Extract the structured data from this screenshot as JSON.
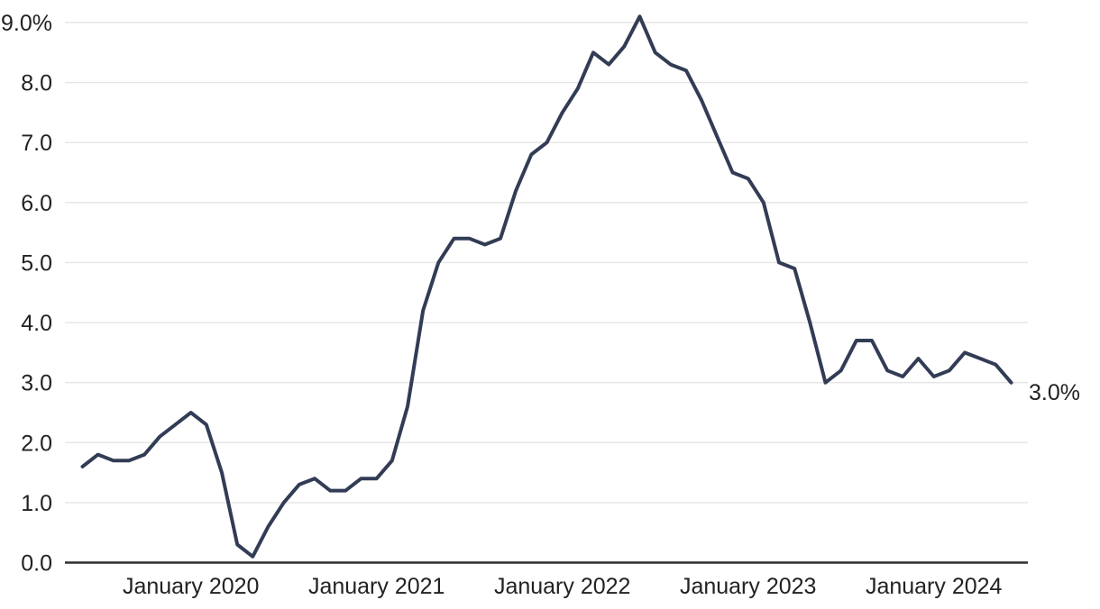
{
  "chart_data": {
    "type": "line",
    "title": "",
    "xlabel": "",
    "ylabel": "",
    "x": [
      "2019-06",
      "2019-07",
      "2019-08",
      "2019-09",
      "2019-10",
      "2019-11",
      "2019-12",
      "2020-01",
      "2020-02",
      "2020-03",
      "2020-04",
      "2020-05",
      "2020-06",
      "2020-07",
      "2020-08",
      "2020-09",
      "2020-10",
      "2020-11",
      "2020-12",
      "2021-01",
      "2021-02",
      "2021-03",
      "2021-04",
      "2021-05",
      "2021-06",
      "2021-07",
      "2021-08",
      "2021-09",
      "2021-10",
      "2021-11",
      "2021-12",
      "2022-01",
      "2022-02",
      "2022-03",
      "2022-04",
      "2022-05",
      "2022-06",
      "2022-07",
      "2022-08",
      "2022-09",
      "2022-10",
      "2022-11",
      "2022-12",
      "2023-01",
      "2023-02",
      "2023-03",
      "2023-04",
      "2023-05",
      "2023-06",
      "2023-07",
      "2023-08",
      "2023-09",
      "2023-10",
      "2023-11",
      "2023-12",
      "2024-01",
      "2024-02",
      "2024-03",
      "2024-04",
      "2024-05",
      "2024-06"
    ],
    "values": [
      1.6,
      1.8,
      1.7,
      1.7,
      1.8,
      2.1,
      2.3,
      2.5,
      2.3,
      1.5,
      0.3,
      0.1,
      0.6,
      1.0,
      1.3,
      1.4,
      1.2,
      1.2,
      1.4,
      1.4,
      1.7,
      2.6,
      4.2,
      5.0,
      5.4,
      5.4,
      5.3,
      5.4,
      6.2,
      6.8,
      7.0,
      7.5,
      7.9,
      8.5,
      8.3,
      8.6,
      9.1,
      8.5,
      8.3,
      8.2,
      7.7,
      7.1,
      6.5,
      6.4,
      6.0,
      5.0,
      4.9,
      4.0,
      3.0,
      3.2,
      3.7,
      3.7,
      3.2,
      3.1,
      3.4,
      3.1,
      3.2,
      3.5,
      3.4,
      3.3,
      3.0
    ],
    "ylim": [
      0,
      9
    ],
    "yticks": [
      {
        "value": 9,
        "label": "9.0%"
      },
      {
        "value": 8,
        "label": "8.0"
      },
      {
        "value": 7,
        "label": "7.0"
      },
      {
        "value": 6,
        "label": "6.0"
      },
      {
        "value": 5,
        "label": "5.0"
      },
      {
        "value": 4,
        "label": "4.0"
      },
      {
        "value": 3,
        "label": "3.0"
      },
      {
        "value": 2,
        "label": "2.0"
      },
      {
        "value": 1,
        "label": "1.0"
      },
      {
        "value": 0,
        "label": "0.0"
      }
    ],
    "xticks": [
      {
        "index": 7,
        "label": "January 2020"
      },
      {
        "index": 19,
        "label": "January 2021"
      },
      {
        "index": 31,
        "label": "January 2022"
      },
      {
        "index": 43,
        "label": "January 2023"
      },
      {
        "index": 55,
        "label": "January 2024"
      }
    ],
    "end_annotation": "3.0%",
    "grid": "horizontal",
    "legend": "none",
    "colors": {
      "line": "#323c55",
      "grid": "#e5e5e5",
      "axis": "#2e2e2e",
      "label": "#222222",
      "background": "#ffffff"
    }
  }
}
